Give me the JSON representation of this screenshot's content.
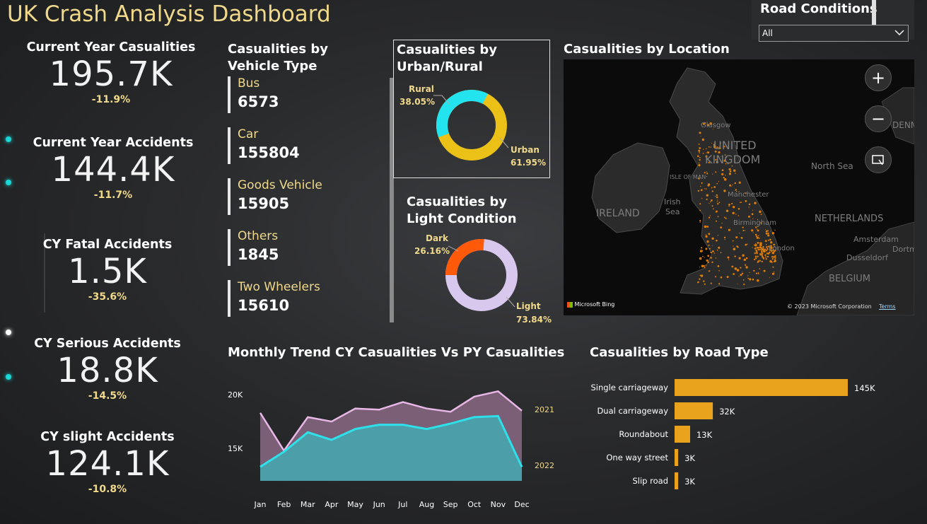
{
  "dashboard": {
    "title": "UK Crash Analysis Dashboard"
  },
  "slicer": {
    "title": "Road Conditions",
    "value": "All"
  },
  "kpis": [
    {
      "label": "Current Year Casualities",
      "value": "195.7K",
      "delta": "-11.9%"
    },
    {
      "label": "Current Year Accidents",
      "value": "144.4K",
      "delta": "-11.7%"
    },
    {
      "label": "CY Fatal Accidents",
      "value": "1.5K",
      "delta": "-35.6%"
    },
    {
      "label": "CY Serious Accidents",
      "value": "18.8K",
      "delta": "-14.5%"
    },
    {
      "label": "CY slight Accidents",
      "value": "124.1K",
      "delta": "-10.8%"
    }
  ],
  "vehicle": {
    "title": "Casualities by Vehicle Type",
    "items": [
      {
        "name": "Bus",
        "value": "6573"
      },
      {
        "name": "Car",
        "value": "155804"
      },
      {
        "name": "Goods Vehicle",
        "value": "15905"
      },
      {
        "name": "Others",
        "value": "1845"
      },
      {
        "name": "Two Wheelers",
        "value": "15610"
      }
    ]
  },
  "urban": {
    "title": "Casualities by Urban/Rural",
    "rural_label": "Rural",
    "rural_pct": "38.05%",
    "urban_label": "Urban",
    "urban_pct": "61.95%",
    "colors": {
      "rural": "#22e3ee",
      "urban": "#ebc117"
    }
  },
  "light": {
    "title": "Casualities by Light Condition",
    "dark_label": "Dark",
    "dark_pct": "26.16%",
    "light_label": "Light",
    "light_pct": "73.84%",
    "colors": {
      "dark": "#ff5a0a",
      "light": "#d8c8ee"
    }
  },
  "map": {
    "title": "Casualities by Location",
    "labels": {
      "uk": "UNITED",
      "uk2": "KINGDOM",
      "ireland": "IRELAND",
      "northsea": "North Sea",
      "netherlands": "NETHERLANDS",
      "belgium": "BELGIUM",
      "irish_sea": "Irish",
      "irish_sea2": "Sea",
      "iom": "ISLE OF MAN",
      "glasgow": "Glasgow",
      "manchester": "Manchester",
      "birmingham": "Birmingham",
      "london": "London",
      "amsterdam": "Amsterdam",
      "dusseldorf": "Dusseldorf",
      "denmark": "DENM",
      "dortmund": "Dortm"
    },
    "bing": "Microsoft Bing",
    "copyright": "© 2023 Microsoft Corporation",
    "terms": "Terms"
  },
  "monthly": {
    "title": "Monthly Trend CY Casualities Vs PY Casualities"
  },
  "road": {
    "title": "Casualities by Road Type"
  },
  "chart_data": [
    {
      "type": "area",
      "title": "Monthly Trend CY Casualities Vs PY Casualities",
      "categories": [
        "Jan",
        "Feb",
        "Mar",
        "Apr",
        "May",
        "Jun",
        "Jul",
        "Aug",
        "Sep",
        "Oct",
        "Nov",
        "Dec"
      ],
      "y_ticks": [
        "20K",
        "15K"
      ],
      "ylim": [
        12000,
        21500
      ],
      "series": [
        {
          "name": "2021",
          "color": "#e7b7e6",
          "values": [
            18300,
            14800,
            17900,
            17500,
            18700,
            18600,
            19300,
            18700,
            18400,
            19800,
            20300,
            18500
          ]
        },
        {
          "name": "2022",
          "color": "#2ee0e9",
          "values": [
            13300,
            14700,
            16500,
            15800,
            16800,
            17200,
            17200,
            16800,
            17300,
            17900,
            18000,
            13300
          ]
        }
      ]
    },
    {
      "type": "bar",
      "title": "Casualities by Road Type",
      "categories": [
        "Single carriageway",
        "Dual carriageway",
        "Roundabout",
        "One way street",
        "Slip road"
      ],
      "values": [
        145000,
        32000,
        13000,
        3000,
        3000
      ],
      "labels": [
        "145K",
        "32K",
        "13K",
        "3K",
        "3K"
      ],
      "color": "#e8a21b"
    }
  ]
}
